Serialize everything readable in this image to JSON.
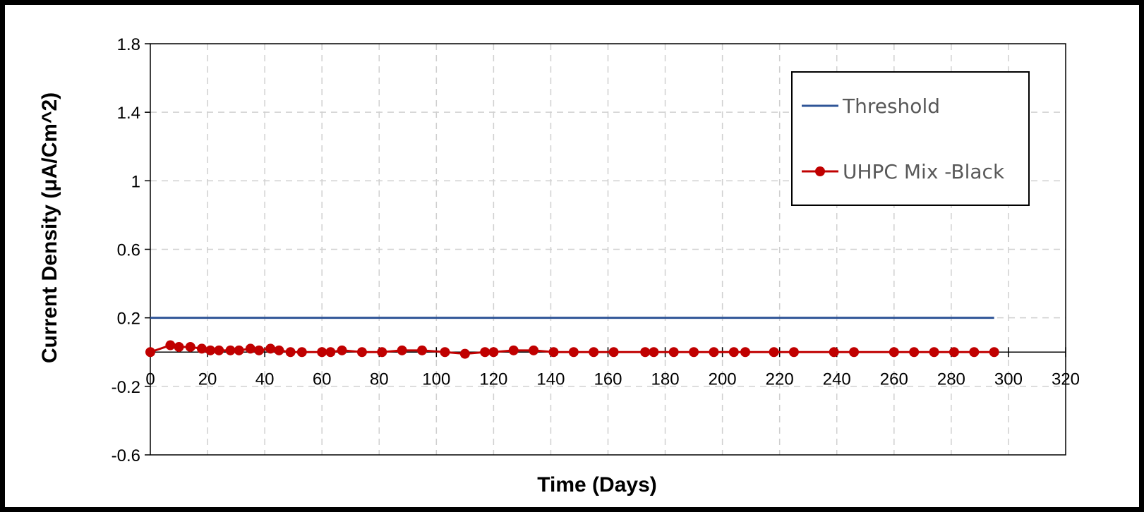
{
  "chart_data": {
    "type": "line",
    "title": "",
    "xlabel": "Time (Days)",
    "ylabel": "Current Density (μA/Cm^2)",
    "xlim": [
      0,
      320
    ],
    "ylim": [
      -0.6,
      1.8
    ],
    "x_ticks": [
      "0",
      "20",
      "40",
      "60",
      "80",
      "100",
      "120",
      "140",
      "160",
      "180",
      "200",
      "220",
      "240",
      "260",
      "280",
      "300",
      "320"
    ],
    "y_ticks": [
      "1.8",
      "1.4",
      "1",
      "0.6",
      "0.2",
      "-0.2",
      "-0.6"
    ],
    "x_tick_values": [
      0,
      20,
      40,
      60,
      80,
      100,
      120,
      140,
      160,
      180,
      200,
      220,
      240,
      260,
      280,
      300,
      320
    ],
    "y_tick_values": [
      1.8,
      1.4,
      1.0,
      0.6,
      0.2,
      -0.2,
      -0.6
    ],
    "grid": true,
    "grid_style": "dashed",
    "legend_position": "top-right",
    "series": [
      {
        "name": "Threshold",
        "color": "#2F5597",
        "marker": "none",
        "x": [
          0,
          295
        ],
        "y": [
          0.2,
          0.2
        ]
      },
      {
        "name": "UHPC Mix -Black",
        "color": "#C00000",
        "marker": "circle",
        "x": [
          0,
          7,
          10,
          14,
          18,
          21,
          24,
          28,
          31,
          35,
          38,
          42,
          45,
          49,
          53,
          60,
          63,
          67,
          74,
          81,
          88,
          95,
          103,
          110,
          117,
          120,
          127,
          134,
          141,
          148,
          155,
          162,
          173,
          176,
          183,
          190,
          197,
          204,
          208,
          218,
          225,
          239,
          246,
          260,
          267,
          274,
          281,
          288,
          295
        ],
        "y": [
          0.0,
          0.04,
          0.03,
          0.03,
          0.02,
          0.01,
          0.01,
          0.01,
          0.01,
          0.02,
          0.01,
          0.02,
          0.01,
          0.0,
          0.0,
          0.0,
          0.0,
          0.01,
          0.0,
          0.0,
          0.01,
          0.01,
          0.0,
          -0.01,
          0.0,
          0.0,
          0.01,
          0.01,
          0.0,
          0.0,
          0.0,
          0.0,
          0.0,
          0.0,
          0.0,
          0.0,
          0.0,
          0.0,
          0.0,
          0.0,
          0.0,
          0.0,
          0.0,
          0.0,
          0.0,
          0.0,
          0.0,
          0.0,
          0.0
        ]
      }
    ]
  }
}
